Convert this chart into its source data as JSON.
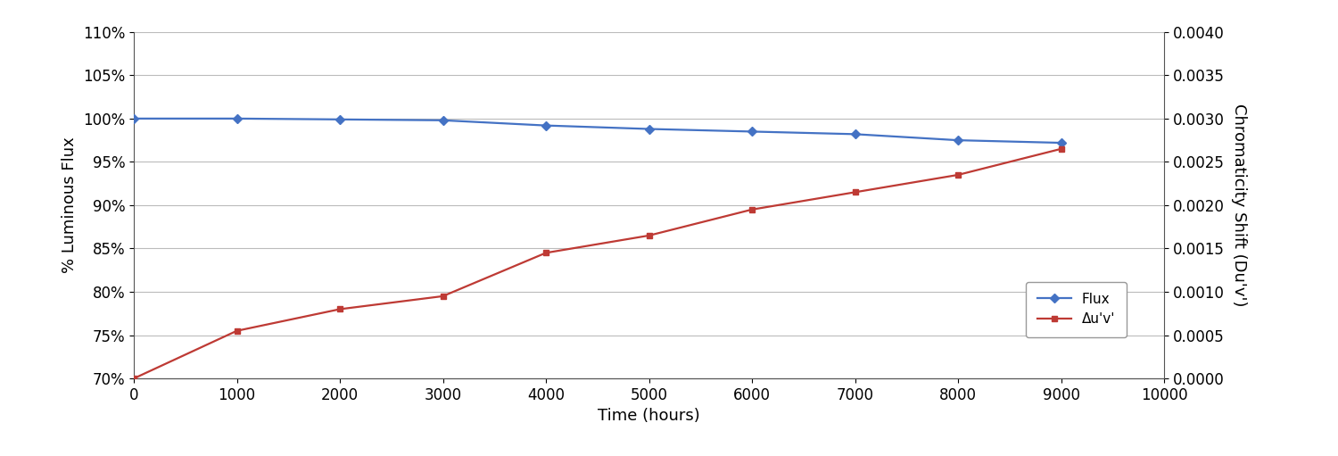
{
  "time": [
    0,
    1000,
    2000,
    3000,
    4000,
    5000,
    6000,
    7000,
    8000,
    9000
  ],
  "flux": [
    1.0,
    1.0,
    0.999,
    0.998,
    0.992,
    0.988,
    0.985,
    0.982,
    0.975,
    0.972
  ],
  "chromaticity": [
    0.0,
    0.00055,
    0.0008,
    0.00095,
    0.00145,
    0.00165,
    0.00195,
    0.00215,
    0.00235,
    0.00265
  ],
  "flux_color": "#4472C4",
  "chroma_color": "#BE3A34",
  "flux_marker": "D",
  "chroma_marker": "s",
  "xlabel": "Time (hours)",
  "ylabel_left": "% Luminous Flux",
  "ylabel_right": "Chromaticity Shift (Du'v')",
  "legend_flux": "Flux",
  "legend_chroma": "Δu'v'",
  "xlim": [
    0,
    10000
  ],
  "ylim_left": [
    0.7,
    1.1
  ],
  "ylim_right": [
    0.0,
    0.004
  ],
  "yticks_left": [
    0.7,
    0.75,
    0.8,
    0.85,
    0.9,
    0.95,
    1.0,
    1.05,
    1.1
  ],
  "yticks_right": [
    0.0,
    0.0005,
    0.001,
    0.0015,
    0.002,
    0.0025,
    0.003,
    0.0035,
    0.004
  ],
  "xticks": [
    0,
    1000,
    2000,
    3000,
    4000,
    5000,
    6000,
    7000,
    8000,
    9000,
    10000
  ],
  "bg_color": "#FFFFFF",
  "grid_color": "#BBBBBB",
  "marker_size": 5,
  "line_width": 1.6,
  "tick_labelsize": 12,
  "axis_labelsize": 13
}
